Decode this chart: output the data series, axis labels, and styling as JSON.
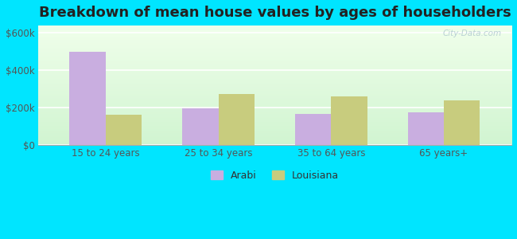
{
  "title": "Breakdown of mean house values by ages of householders",
  "categories": [
    "15 to 24 years",
    "25 to 34 years",
    "35 to 64 years",
    "65 years+"
  ],
  "arabi_values": [
    500000,
    195000,
    165000,
    172000
  ],
  "louisiana_values": [
    160000,
    270000,
    258000,
    238000
  ],
  "arabi_color": "#c9aee0",
  "louisiana_color": "#c8cc7e",
  "yticks": [
    0,
    200000,
    400000,
    600000
  ],
  "ytick_labels": [
    "$0",
    "$200k",
    "$400k",
    "$600k"
  ],
  "ylim": [
    0,
    640000
  ],
  "background_color": "#00e5ff",
  "title_fontsize": 13,
  "axis_label_fontsize": 8.5,
  "legend_fontsize": 9,
  "watermark": "City-Data.com"
}
